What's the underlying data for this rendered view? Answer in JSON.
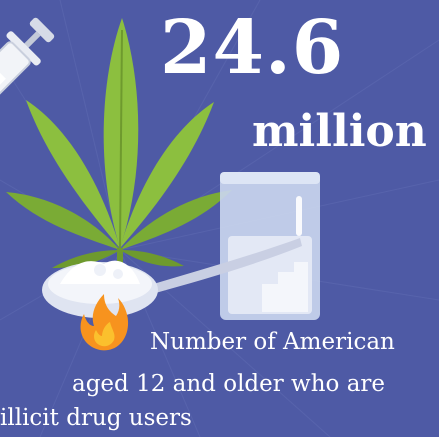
{
  "stat": {
    "value": "24.6",
    "unit": "million"
  },
  "caption": {
    "line1": "Number of American",
    "line2": "aged 12 and older who are",
    "line3": "illicit drug users"
  },
  "colors": {
    "background": "#4e5aa5",
    "leaf": "#8cbf3f",
    "leaf_dark": "#6e9a2e",
    "text": "#ffffff",
    "flame": "#f7931e"
  },
  "icons": [
    "syringe-icon",
    "cannabis-leaf-icon",
    "spoon-icon",
    "powder-bag-icon",
    "flame-icon"
  ]
}
